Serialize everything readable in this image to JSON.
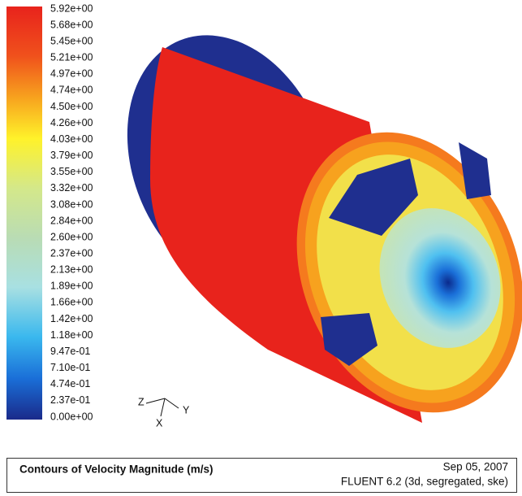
{
  "colorbar": {
    "labels": [
      "5.92e+00",
      "5.68e+00",
      "5.45e+00",
      "5.21e+00",
      "4.97e+00",
      "4.74e+00",
      "4.50e+00",
      "4.26e+00",
      "4.03e+00",
      "3.79e+00",
      "3.55e+00",
      "3.32e+00",
      "3.08e+00",
      "2.84e+00",
      "2.60e+00",
      "2.37e+00",
      "2.13e+00",
      "1.89e+00",
      "1.66e+00",
      "1.42e+00",
      "1.18e+00",
      "9.47e-01",
      "7.10e-01",
      "4.74e-01",
      "2.37e-01",
      "0.00e+00"
    ]
  },
  "triad": {
    "z": "Z",
    "y": "Y",
    "x": "X"
  },
  "caption": {
    "title": "Contours of Velocity Magnitude (m/s)",
    "date": "Sep 05, 2007",
    "solver": "FLUENT 6.2 (3d, segregated, ske)"
  }
}
